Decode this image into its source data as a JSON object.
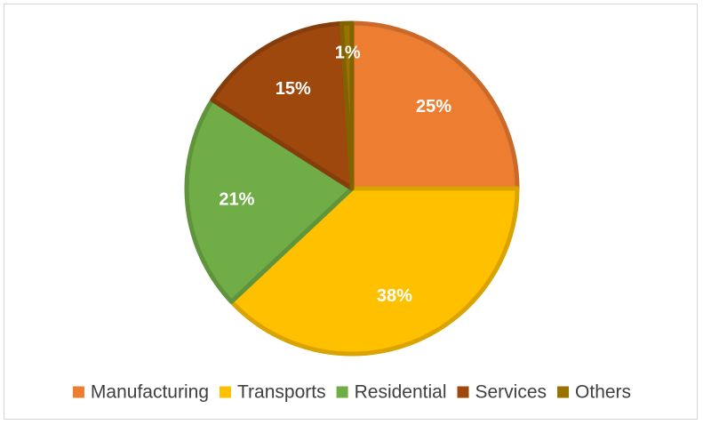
{
  "chart_data": {
    "type": "pie",
    "title": "",
    "categories": [
      "Manufacturing",
      "Transports",
      "Residential",
      "Services",
      "Others"
    ],
    "values": [
      25,
      38,
      21,
      15,
      1
    ],
    "labels": [
      "25%",
      "38%",
      "21%",
      "15%",
      "1%"
    ],
    "colors": [
      "#ED7D31",
      "#FFC000",
      "#70AD47",
      "#9E480E",
      "#997300"
    ],
    "legend_position": "bottom"
  }
}
